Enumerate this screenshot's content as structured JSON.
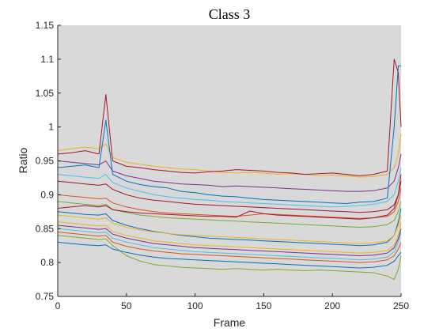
{
  "chart_data": {
    "type": "line",
    "title": "Class 3",
    "xlabel": "Frame",
    "ylabel": "Ratio",
    "xlim": [
      0,
      250
    ],
    "ylim": [
      0.75,
      1.15
    ],
    "xticks": [
      0,
      50,
      100,
      150,
      200,
      250
    ],
    "yticks": [
      0.75,
      0.8,
      0.85,
      0.9,
      0.95,
      1,
      1.05,
      1.1,
      1.15
    ],
    "xtick_labels": [
      "0",
      "50",
      "100",
      "150",
      "200",
      "250"
    ],
    "ytick_labels": [
      "0.75",
      "0.8",
      "0.85",
      "0.9",
      "0.95",
      "1",
      "1.05",
      "1.1",
      "1.15"
    ],
    "grid": false,
    "plot_background": "#d9d9d9",
    "x": [
      0,
      10,
      20,
      30,
      35,
      40,
      50,
      60,
      70,
      80,
      90,
      100,
      110,
      120,
      130,
      140,
      150,
      160,
      170,
      180,
      190,
      200,
      210,
      220,
      230,
      240,
      245,
      248,
      250
    ],
    "series": [
      {
        "color": "#EDB120",
        "values": [
          0.965,
          0.968,
          0.97,
          0.968,
          0.975,
          0.955,
          0.948,
          0.945,
          0.942,
          0.94,
          0.938,
          0.937,
          0.935,
          0.933,
          0.932,
          0.933,
          0.932,
          0.93,
          0.931,
          0.93,
          0.928,
          0.929,
          0.928,
          0.926,
          0.927,
          0.93,
          0.94,
          0.96,
          0.99
        ]
      },
      {
        "color": "#A2142F",
        "values": [
          0.96,
          0.962,
          0.965,
          0.96,
          1.048,
          0.95,
          0.942,
          0.94,
          0.937,
          0.935,
          0.933,
          0.932,
          0.934,
          0.935,
          0.937,
          0.936,
          0.935,
          0.933,
          0.932,
          0.93,
          0.931,
          0.932,
          0.93,
          0.928,
          0.93,
          0.935,
          1.1,
          1.08,
          1.0
        ]
      },
      {
        "color": "#7E2F8E",
        "values": [
          0.95,
          0.948,
          0.946,
          0.944,
          0.95,
          0.935,
          0.928,
          0.924,
          0.92,
          0.918,
          0.916,
          0.915,
          0.914,
          0.912,
          0.913,
          0.912,
          0.911,
          0.91,
          0.909,
          0.908,
          0.907,
          0.906,
          0.905,
          0.905,
          0.906,
          0.91,
          0.92,
          0.94,
          0.96
        ]
      },
      {
        "color": "#0072BD",
        "values": [
          0.94,
          0.942,
          0.944,
          0.94,
          1.01,
          0.93,
          0.92,
          0.915,
          0.912,
          0.91,
          0.905,
          0.903,
          0.9,
          0.898,
          0.897,
          0.895,
          0.893,
          0.892,
          0.891,
          0.89,
          0.889,
          0.888,
          0.887,
          0.889,
          0.89,
          0.895,
          1.0,
          1.09,
          1.09
        ]
      },
      {
        "color": "#4DBEEE",
        "values": [
          0.93,
          0.928,
          0.926,
          0.924,
          0.93,
          0.918,
          0.91,
          0.905,
          0.9,
          0.897,
          0.895,
          0.893,
          0.892,
          0.89,
          0.889,
          0.888,
          0.887,
          0.886,
          0.885,
          0.884,
          0.883,
          0.882,
          0.883,
          0.884,
          0.886,
          0.89,
          0.9,
          0.92,
          0.94
        ]
      },
      {
        "color": "#D95319",
        "values": [
          0.9,
          0.898,
          0.896,
          0.894,
          0.895,
          0.888,
          0.882,
          0.878,
          0.875,
          0.873,
          0.872,
          0.871,
          0.87,
          0.869,
          0.868,
          0.87,
          0.872,
          0.871,
          0.87,
          0.869,
          0.868,
          0.867,
          0.866,
          0.865,
          0.866,
          0.868,
          0.875,
          0.89,
          0.91
        ]
      },
      {
        "color": "#77AC30",
        "values": [
          0.89,
          0.888,
          0.886,
          0.884,
          0.886,
          0.878,
          0.874,
          0.87,
          0.868,
          0.866,
          0.865,
          0.864,
          0.863,
          0.862,
          0.861,
          0.86,
          0.859,
          0.858,
          0.857,
          0.856,
          0.855,
          0.854,
          0.853,
          0.852,
          0.853,
          0.856,
          0.862,
          0.875,
          0.89
        ]
      },
      {
        "color": "#A2142F",
        "values": [
          0.88,
          0.882,
          0.884,
          0.882,
          0.884,
          0.878,
          0.875,
          0.873,
          0.872,
          0.871,
          0.87,
          0.869,
          0.868,
          0.868,
          0.867,
          0.876,
          0.872,
          0.87,
          0.869,
          0.868,
          0.867,
          0.866,
          0.865,
          0.864,
          0.866,
          0.87,
          0.88,
          0.9,
          0.93
        ]
      },
      {
        "color": "#0072BD",
        "values": [
          0.875,
          0.873,
          0.871,
          0.87,
          0.872,
          0.862,
          0.855,
          0.85,
          0.846,
          0.843,
          0.84,
          0.838,
          0.836,
          0.835,
          0.834,
          0.833,
          0.832,
          0.831,
          0.83,
          0.829,
          0.828,
          0.827,
          0.826,
          0.825,
          0.826,
          0.83,
          0.84,
          0.86,
          0.88
        ]
      },
      {
        "color": "#EDB120",
        "values": [
          0.86,
          0.858,
          0.856,
          0.854,
          0.855,
          0.846,
          0.84,
          0.836,
          0.832,
          0.83,
          0.828,
          0.826,
          0.825,
          0.824,
          0.823,
          0.822,
          0.821,
          0.82,
          0.819,
          0.818,
          0.817,
          0.816,
          0.815,
          0.814,
          0.815,
          0.818,
          0.826,
          0.84,
          0.86
        ]
      },
      {
        "color": "#7E2F8E",
        "values": [
          0.855,
          0.853,
          0.851,
          0.849,
          0.85,
          0.842,
          0.836,
          0.832,
          0.828,
          0.826,
          0.824,
          0.822,
          0.821,
          0.82,
          0.819,
          0.818,
          0.817,
          0.816,
          0.815,
          0.814,
          0.813,
          0.812,
          0.811,
          0.81,
          0.811,
          0.814,
          0.822,
          0.835,
          0.85
        ]
      },
      {
        "color": "#4DBEEE",
        "values": [
          0.85,
          0.848,
          0.846,
          0.844,
          0.845,
          0.836,
          0.83,
          0.826,
          0.822,
          0.82,
          0.818,
          0.816,
          0.815,
          0.814,
          0.813,
          0.812,
          0.811,
          0.81,
          0.809,
          0.808,
          0.807,
          0.806,
          0.805,
          0.804,
          0.805,
          0.808,
          0.816,
          0.83,
          0.845
        ]
      },
      {
        "color": "#D95319",
        "values": [
          0.845,
          0.843,
          0.841,
          0.839,
          0.84,
          0.83,
          0.824,
          0.82,
          0.817,
          0.815,
          0.813,
          0.812,
          0.811,
          0.81,
          0.809,
          0.808,
          0.807,
          0.806,
          0.805,
          0.804,
          0.803,
          0.802,
          0.801,
          0.8,
          0.801,
          0.804,
          0.81,
          0.82,
          0.83
        ]
      },
      {
        "color": "#77AC30",
        "values": [
          0.84,
          0.838,
          0.836,
          0.834,
          0.835,
          0.825,
          0.81,
          0.802,
          0.797,
          0.795,
          0.793,
          0.792,
          0.791,
          0.79,
          0.791,
          0.79,
          0.789,
          0.79,
          0.789,
          0.788,
          0.789,
          0.788,
          0.787,
          0.786,
          0.785,
          0.78,
          0.775,
          0.79,
          0.81
        ]
      },
      {
        "color": "#0072BD",
        "values": [
          0.83,
          0.828,
          0.826,
          0.825,
          0.826,
          0.82,
          0.815,
          0.811,
          0.808,
          0.806,
          0.805,
          0.804,
          0.803,
          0.802,
          0.801,
          0.8,
          0.799,
          0.798,
          0.797,
          0.796,
          0.795,
          0.794,
          0.793,
          0.792,
          0.793,
          0.796,
          0.802,
          0.81,
          0.815
        ]
      },
      {
        "color": "#A2142F",
        "values": [
          0.92,
          0.918,
          0.916,
          0.914,
          0.916,
          0.908,
          0.9,
          0.895,
          0.892,
          0.89,
          0.888,
          0.886,
          0.885,
          0.884,
          0.883,
          0.882,
          0.881,
          0.88,
          0.879,
          0.878,
          0.877,
          0.876,
          0.875,
          0.874,
          0.875,
          0.878,
          0.885,
          0.9,
          0.92
        ]
      },
      {
        "color": "#EDB120",
        "values": [
          0.87,
          0.868,
          0.866,
          0.864,
          0.866,
          0.858,
          0.852,
          0.848,
          0.845,
          0.843,
          0.841,
          0.84,
          0.839,
          0.838,
          0.837,
          0.836,
          0.835,
          0.834,
          0.833,
          0.832,
          0.831,
          0.83,
          0.829,
          0.828,
          0.829,
          0.832,
          0.84,
          0.855,
          0.87
        ]
      }
    ]
  }
}
